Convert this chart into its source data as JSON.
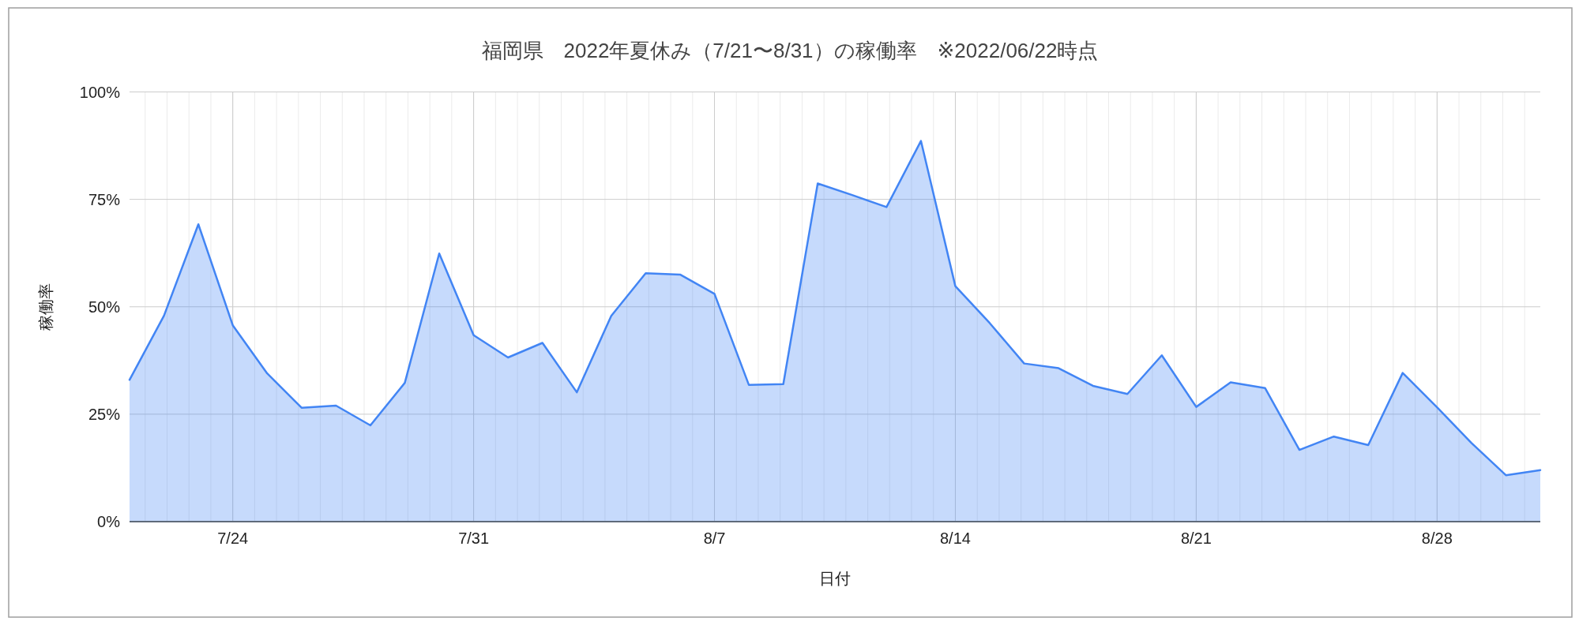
{
  "chart_data": {
    "type": "area",
    "title": "福岡県　2022年夏休み（7/21〜8/31）の稼働率　※2022/06/22時点",
    "xlabel": "日付",
    "ylabel": "稼働率",
    "x": [
      "--07-21",
      "--07-22",
      "--07-23",
      "--07-24",
      "--07-25",
      "--07-26",
      "--07-27",
      "--07-28",
      "--07-29",
      "--07-30",
      "--07-31",
      "--08-01",
      "--08-02",
      "--08-03",
      "--08-04",
      "--08-05",
      "--08-06",
      "--08-07",
      "--08-08",
      "--08-09",
      "--08-10",
      "--08-11",
      "--08-12",
      "--08-13",
      "--08-14",
      "--08-15",
      "--08-16",
      "--08-17",
      "--08-18",
      "--08-19",
      "--08-20",
      "--08-21",
      "--08-22",
      "--08-23",
      "--08-24",
      "--08-25",
      "--08-26",
      "--08-27",
      "--08-28",
      "--08-29",
      "--08-30",
      "--08-31"
    ],
    "series": [
      {
        "color": "#4285f4",
        "values": [
          33.0,
          47.9,
          69.2,
          45.7,
          34.5,
          26.5,
          27.0,
          22.4,
          32.3,
          62.4,
          43.4,
          38.2,
          41.6,
          30.1,
          47.9,
          57.8,
          57.5,
          53.0,
          31.8,
          32.0,
          78.7,
          76.0,
          73.2,
          88.6,
          54.8,
          46.2,
          36.8,
          35.7,
          31.6,
          29.7,
          38.7,
          26.7,
          32.4,
          31.1,
          16.7,
          19.8,
          17.8,
          34.6,
          26.6,
          18.3,
          10.8,
          12.0
        ]
      }
    ],
    "xlim": [
      "--07-21",
      "--08-31"
    ],
    "xticks": [
      {
        "value": "--07-24",
        "label": "7/24"
      },
      {
        "value": "--07-31",
        "label": "7/31"
      },
      {
        "value": "--08-07",
        "label": "8/7"
      },
      {
        "value": "--08-14",
        "label": "8/14"
      },
      {
        "value": "--08-21",
        "label": "8/21"
      },
      {
        "value": "--08-28",
        "label": "8/28"
      }
    ],
    "ylim": [
      0,
      100
    ],
    "yticks": [
      {
        "value": 0,
        "label": "0%"
      },
      {
        "value": 25,
        "label": "25%"
      },
      {
        "value": 50,
        "label": "50%"
      },
      {
        "value": 75,
        "label": "75%"
      },
      {
        "value": 100,
        "label": "100%"
      }
    ],
    "grid": true
  }
}
